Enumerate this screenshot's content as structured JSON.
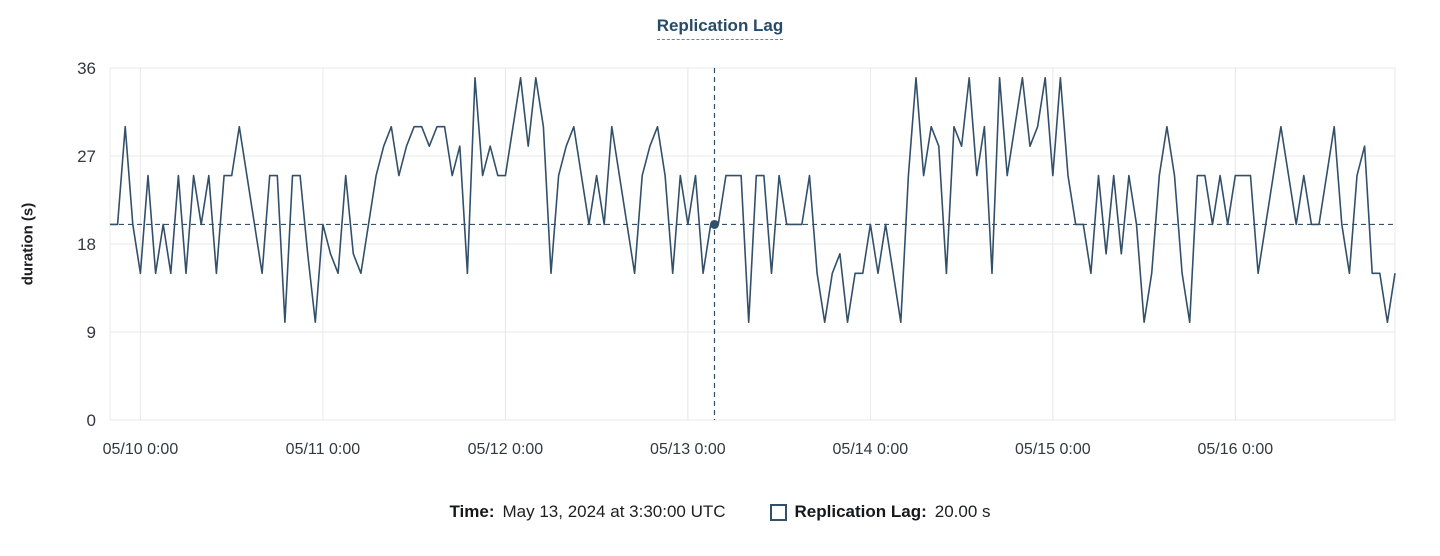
{
  "title": "Replication Lag",
  "colors": {
    "line": "#33506a",
    "title": "#274b68",
    "grid": "#e8e8ea",
    "axis_text": "#343741",
    "crosshair": "#33506a"
  },
  "y_axis_title": "duration (s)",
  "chart_data": {
    "type": "line",
    "title": "Replication Lag",
    "xlabel": "",
    "ylabel": "duration (s)",
    "ylim": [
      0,
      36
    ],
    "yticks": [
      0,
      9,
      18,
      27,
      36
    ],
    "xticks": [
      "05/10 0:00",
      "05/11 0:00",
      "05/12 0:00",
      "05/13 0:00",
      "05/14 0:00",
      "05/15 0:00",
      "05/16 0:00"
    ],
    "xtick_indices": [
      4,
      28,
      52,
      76,
      100,
      124,
      148
    ],
    "x_unit": "hours",
    "grid": true,
    "legend_position": "bottom",
    "crosshair": {
      "index": 79.5,
      "value": 20,
      "time_label": "May 13, 2024 at 3:30:00 UTC",
      "value_label": "20.00 s"
    },
    "series": [
      {
        "name": "Replication Lag",
        "values": [
          20,
          20,
          30,
          20,
          15,
          25,
          15,
          20,
          15,
          25,
          15,
          25,
          20,
          25,
          15,
          25,
          25,
          30,
          25,
          20,
          15,
          25,
          25,
          10,
          25,
          25,
          17,
          10,
          20,
          17,
          15,
          25,
          17,
          15,
          20,
          25,
          28,
          30,
          25,
          28,
          30,
          30,
          28,
          30,
          30,
          25,
          28,
          15,
          35,
          25,
          28,
          25,
          25,
          30,
          35,
          28,
          35,
          30,
          15,
          25,
          28,
          30,
          25,
          20,
          25,
          20,
          30,
          25,
          20,
          15,
          25,
          28,
          30,
          25,
          15,
          25,
          20,
          25,
          15,
          20,
          20,
          25,
          25,
          25,
          10,
          25,
          25,
          15,
          25,
          20,
          20,
          20,
          25,
          15,
          10,
          15,
          17,
          10,
          15,
          15,
          20,
          15,
          20,
          15,
          10,
          25,
          35,
          25,
          30,
          28,
          15,
          30,
          28,
          35,
          25,
          30,
          15,
          35,
          25,
          30,
          35,
          28,
          30,
          35,
          25,
          35,
          25,
          20,
          20,
          15,
          25,
          17,
          25,
          17,
          25,
          20,
          10,
          15,
          25,
          30,
          25,
          15,
          10,
          25,
          25,
          20,
          25,
          20,
          25,
          25,
          25,
          15,
          20,
          25,
          30,
          25,
          20,
          25,
          20,
          20,
          25,
          30,
          20,
          15,
          25,
          28,
          15,
          15,
          10,
          15
        ]
      }
    ]
  },
  "tooltip": {
    "time_label": "Time:",
    "time_value": "May 13, 2024 at 3:30:00 UTC",
    "series_label": "Replication Lag:",
    "series_value": "20.00 s"
  }
}
